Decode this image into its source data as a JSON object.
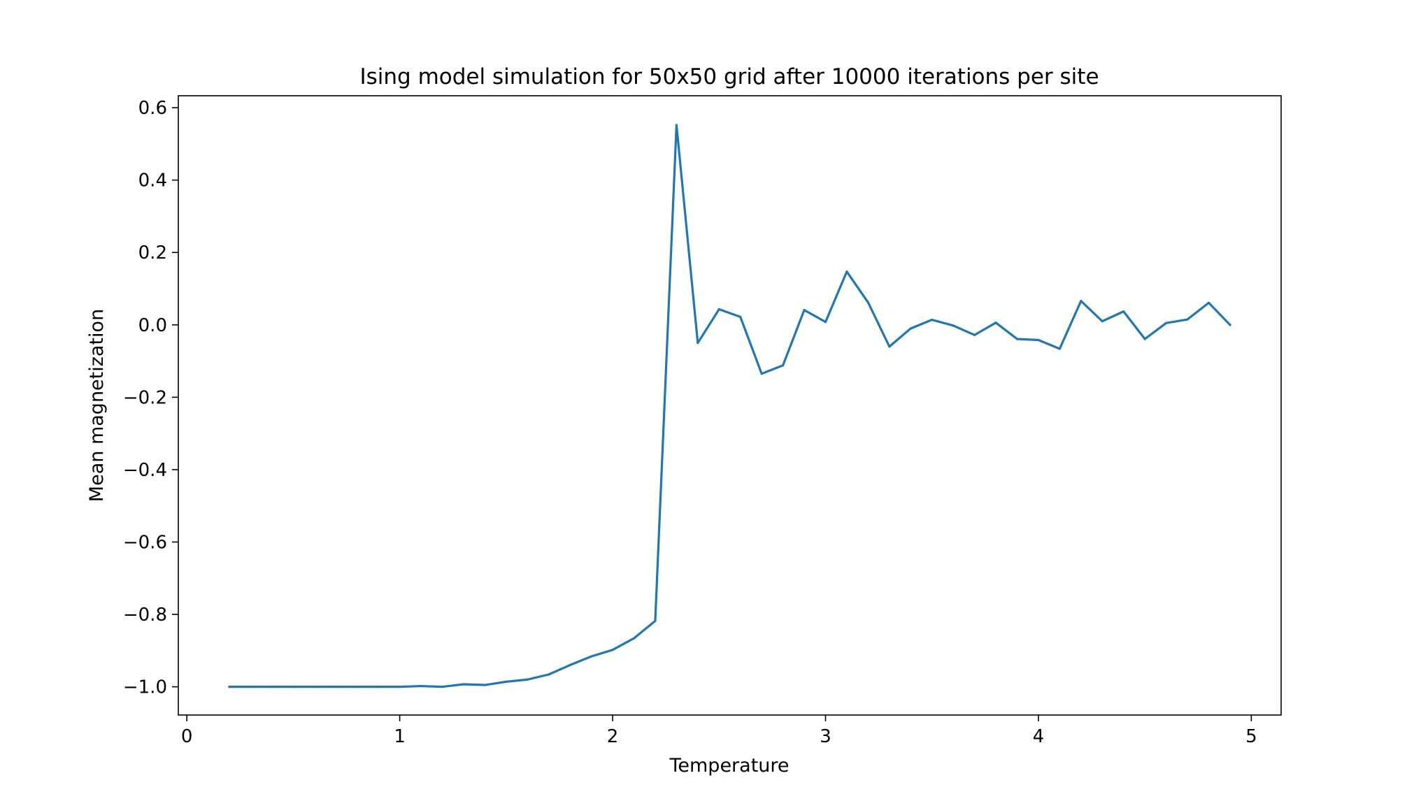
{
  "chart_data": {
    "type": "line",
    "title": "Ising model simulation for 50x50 grid after 10000 iterations per site",
    "xlabel": "Temperature",
    "ylabel": "Mean magnetization",
    "xlim": [
      -0.04,
      5.14
    ],
    "ylim": [
      -1.078,
      0.633
    ],
    "xticks": [
      {
        "value": 0,
        "label": "0"
      },
      {
        "value": 1,
        "label": "1"
      },
      {
        "value": 2,
        "label": "2"
      },
      {
        "value": 3,
        "label": "3"
      },
      {
        "value": 4,
        "label": "4"
      },
      {
        "value": 5,
        "label": "5"
      }
    ],
    "yticks": [
      {
        "value": -1.0,
        "label": "−1.0"
      },
      {
        "value": -0.8,
        "label": "−0.8"
      },
      {
        "value": -0.6,
        "label": "−0.6"
      },
      {
        "value": -0.4,
        "label": "−0.4"
      },
      {
        "value": -0.2,
        "label": "−0.2"
      },
      {
        "value": 0.0,
        "label": "0.0"
      },
      {
        "value": 0.2,
        "label": "0.2"
      },
      {
        "value": 0.4,
        "label": "0.4"
      },
      {
        "value": 0.6,
        "label": "0.6"
      }
    ],
    "grid": false,
    "legend": "none",
    "series": [
      {
        "color": "#1f77b4",
        "x": [
          0.2,
          0.3,
          0.4,
          0.5,
          0.6,
          0.7,
          0.8,
          0.9,
          1.0,
          1.1,
          1.2,
          1.3,
          1.4,
          1.5,
          1.6,
          1.7,
          1.8,
          1.9,
          2.0,
          2.1,
          2.2,
          2.3,
          2.4,
          2.5,
          2.6,
          2.7,
          2.8,
          2.9,
          3.0,
          3.1,
          3.2,
          3.3,
          3.4,
          3.5,
          3.6,
          3.7,
          3.8,
          3.9,
          4.0,
          4.1,
          4.2,
          4.3,
          4.4,
          4.5,
          4.6,
          4.7,
          4.8,
          4.9
        ],
        "y": [
          -1.0,
          -1.0,
          -1.0,
          -1.0,
          -1.0,
          -1.0,
          -1.0,
          -1.0,
          -1.0,
          -0.998,
          -1.0,
          -0.993,
          -0.995,
          -0.986,
          -0.98,
          -0.966,
          -0.94,
          -0.916,
          -0.898,
          -0.866,
          -0.818,
          0.552,
          -0.05,
          0.043,
          0.022,
          -0.135,
          -0.112,
          0.041,
          0.008,
          0.147,
          0.062,
          -0.06,
          -0.01,
          0.014,
          -0.002,
          -0.028,
          0.006,
          -0.039,
          -0.042,
          -0.066,
          0.066,
          0.01,
          0.037,
          -0.039,
          0.005,
          0.015,
          0.061,
          0.0
        ]
      }
    ]
  }
}
